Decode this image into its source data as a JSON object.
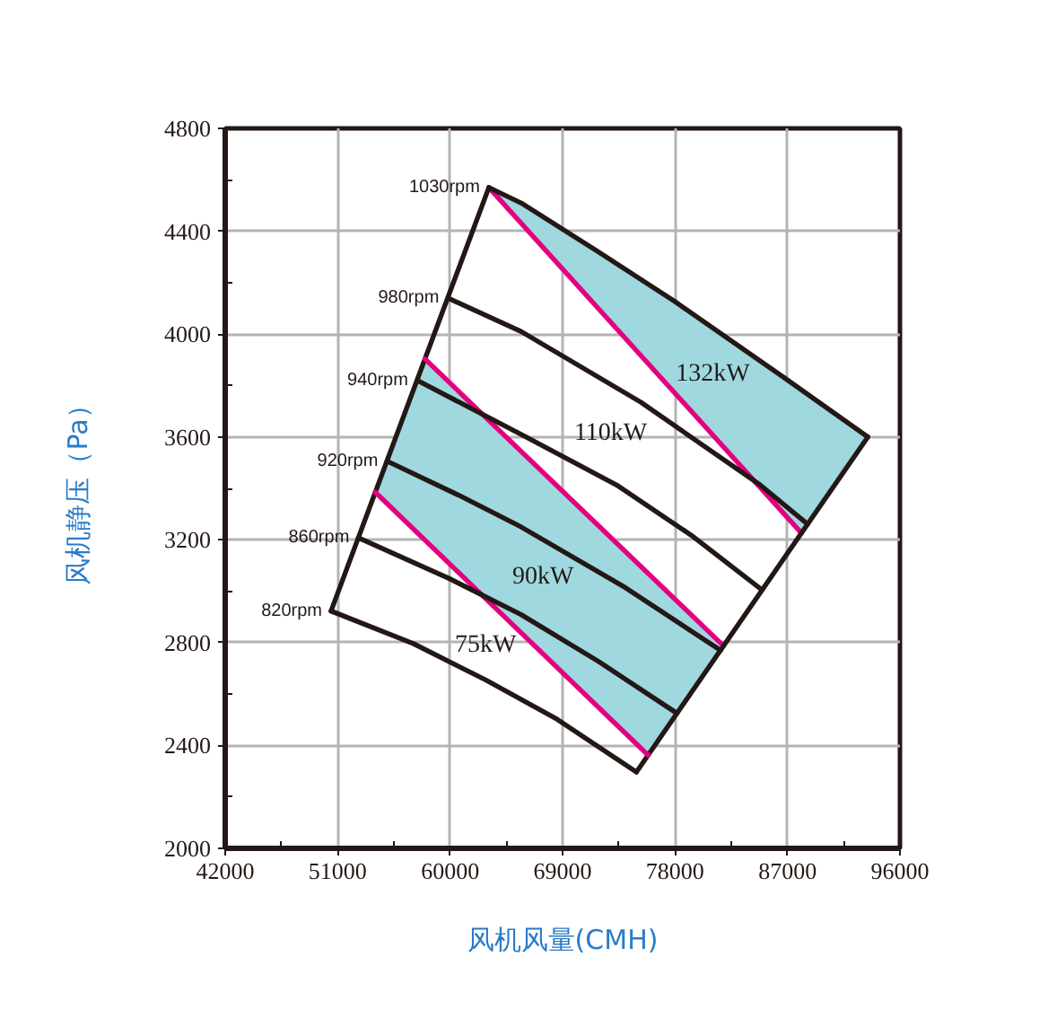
{
  "chart_data": {
    "type": "line",
    "xlabel": "风机风量(CMH)",
    "ylabel": "风机静压（Pa）",
    "xlim": [
      42000,
      96000
    ],
    "ylim": [
      2000,
      4800
    ],
    "xticks": [
      42000,
      {
        "value": 46500,
        "label": null
      },
      51000,
      {
        "value": 55500,
        "label": null
      },
      60000,
      {
        "value": 64500,
        "label": null
      },
      69000,
      {
        "value": 73500,
        "label": null
      },
      78000,
      {
        "value": 82500,
        "label": null
      },
      87000,
      {
        "value": 91500,
        "label": null
      },
      96000
    ],
    "yticks": [
      2000,
      {
        "value": 2200,
        "label": null
      },
      2400,
      {
        "value": 2600,
        "label": null
      },
      2800,
      {
        "value": 3000,
        "label": null
      },
      3200,
      {
        "value": 3400,
        "label": null
      },
      3600,
      {
        "value": 3800,
        "label": null
      },
      4000,
      {
        "value": 4200,
        "label": null
      },
      4400,
      {
        "value": 4600,
        "label": null
      },
      4800
    ],
    "grid": true,
    "series": [
      {
        "color": "#a0d8e0",
        "x": [
          63100,
          65680,
          71860,
          78030,
          86740,
          88120,
          93430
        ],
        "values": [
          null,
          null,
          null,
          null,
          null,
          null,
          null
        ],
        "lower": [
          4570,
          4431,
          4099,
          3768,
          3300,
          3226,
          3600
        ],
        "upper": [
          4570,
          4510,
          4320,
          4125,
          3830,
          3783,
          3600
        ]
      },
      {
        "color": "#a0d8e0",
        "x": [
          54010,
          57990,
          75850,
          81890
        ],
        "values": [
          null,
          null,
          null,
          null
        ],
        "lower": [
          3385,
          3199,
          2362,
          2787
        ],
        "upper": [
          3385,
          3903,
          3069,
          2787
        ]
      },
      {
        "color": "#e4007f",
        "x": [
          63100,
          88120
        ],
        "values": [
          4570,
          3226
        ]
      },
      {
        "color": "#231815",
        "x": [
          50470,
          63100
        ],
        "values": [
          2923,
          4570
        ]
      },
      {
        "color": "#e4007f",
        "x": [
          57990,
          81890
        ],
        "values": [
          3903,
          2787
        ]
      },
      {
        "color": "#231815",
        "x": [
          74910,
          93430
        ],
        "values": [
          2297,
          3600
        ]
      },
      {
        "color": "#e4007f",
        "x": [
          54010,
          75850
        ],
        "values": [
          3385,
          2362
        ]
      },
      {
        "name": "1030rpm",
        "color": "#231815",
        "x": [
          63100,
          65680,
          71860,
          78030,
          86740,
          93430
        ],
        "values": [
          4570,
          4510,
          4320,
          4125,
          3830,
          3600
        ]
      },
      {
        "name": "980rpm",
        "color": "#231815",
        "x": [
          59830,
          65680,
          75260,
          84820,
          88610
        ],
        "values": [
          4140,
          4010,
          3735,
          3413,
          3261
        ]
      },
      {
        "name": "940rpm",
        "color": "#231815",
        "x": [
          57360,
          65680,
          73330,
          79320,
          84960
        ],
        "values": [
          3820,
          3610,
          3413,
          3217,
          3005
        ]
      },
      {
        "name": "920rpm",
        "color": "#231815",
        "x": [
          54950,
          60660,
          65680,
          73820,
          81650
        ],
        "values": [
          3506,
          3374,
          3250,
          3020,
          2770
        ]
      },
      {
        "name": "860rpm",
        "color": "#231815",
        "x": [
          52650,
          59940,
          65680,
          71900,
          78160
        ],
        "values": [
          3208,
          3049,
          2909,
          2726,
          2525
        ]
      },
      {
        "name": "820rpm",
        "color": "#231815",
        "x": [
          50470,
          57070,
          62810,
          68560,
          74910
        ],
        "values": [
          2923,
          2796,
          2656,
          2502,
          2297
        ]
      }
    ],
    "annotations": [
      "132kW",
      "110kW",
      "90kW",
      "75kW"
    ]
  }
}
